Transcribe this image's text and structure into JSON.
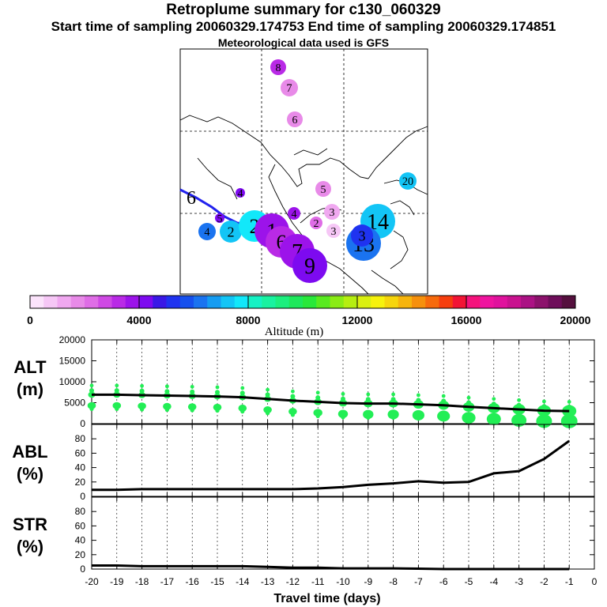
{
  "header": {
    "title": "Retroplume summary for c130_060329",
    "subtitle": "Start time of sampling 20060329.174753     End time of sampling 20060329.174851",
    "met_line": "Meteorological data used is GFS"
  },
  "colorbar": {
    "ticks": [
      "0",
      "4000",
      "8000",
      "12000",
      "16000",
      "20000"
    ],
    "label": "Altitude (m)",
    "colors": [
      "#fbe3fb",
      "#f6c7f6",
      "#f0a8f0",
      "#e88ae8",
      "#df6de6",
      "#cf49e4",
      "#b92ae6",
      "#9c13ea",
      "#7d0af0",
      "#3a18e6",
      "#1f33f0",
      "#1650ee",
      "#1a73f0",
      "#159cf2",
      "#13c5f6",
      "#12e8fa",
      "#15f2c4",
      "#19f2a0",
      "#1cef7e",
      "#1ee85b",
      "#29e83a",
      "#58ea20",
      "#8aec14",
      "#b5ee10",
      "#daf010",
      "#f6f20c",
      "#f6d50c",
      "#f6b40c",
      "#f6900c",
      "#f76a0c",
      "#f63e0e",
      "#f21435",
      "#f5127c",
      "#ef149f",
      "#e0129d",
      "#c9128f",
      "#ab1284",
      "#8c126c",
      "#6e0e5a",
      "#55103e"
    ]
  },
  "map": {
    "day_markers": [
      "1",
      "2",
      "3",
      "4",
      "5",
      "6",
      "7",
      "8",
      "9",
      "13",
      "14",
      "20",
      "4",
      "2",
      "4",
      "5",
      "3",
      "2",
      "3",
      "1",
      "6",
      "5"
    ]
  },
  "chart_data": [
    {
      "type": "scatter",
      "name": "ALT",
      "panel_label": [
        "ALT",
        "(m)"
      ],
      "x": [
        -20,
        -19,
        -18,
        -17,
        -16,
        -15,
        -14,
        -13,
        -12,
        -11,
        -10,
        -9,
        -8,
        -7,
        -6,
        -5,
        -4,
        -3,
        -2,
        -1
      ],
      "median_line": [
        6900,
        6900,
        6800,
        6700,
        6600,
        6500,
        6300,
        5900,
        5500,
        5200,
        4900,
        4800,
        4800,
        4600,
        4400,
        4000,
        3700,
        3400,
        3100,
        3000
      ],
      "yticks": [
        "20000",
        "15000",
        "10000",
        "5000",
        "0"
      ],
      "ylim": [
        0,
        20000
      ],
      "xlim": [
        -20,
        0
      ],
      "marker_color": "#22ee55"
    },
    {
      "type": "line",
      "name": "ABL",
      "panel_label": [
        "ABL",
        "(%)"
      ],
      "x": [
        -20,
        -19,
        -18,
        -17,
        -16,
        -15,
        -14,
        -13,
        -12,
        -11,
        -10,
        -9,
        -8,
        -7,
        -6,
        -5,
        -4,
        -3,
        -2,
        -1
      ],
      "values": [
        9,
        9,
        10,
        10,
        10,
        10,
        10,
        10,
        10,
        11,
        13,
        16,
        18,
        21,
        19,
        20,
        32,
        35,
        52,
        77
      ],
      "yticks": [
        "80",
        "60",
        "40",
        "20",
        "0"
      ],
      "ylim": [
        0,
        100
      ],
      "xlim": [
        -20,
        0
      ]
    },
    {
      "type": "line",
      "name": "STR",
      "panel_label": [
        "STR",
        "(%)"
      ],
      "x": [
        -20,
        -19,
        -18,
        -17,
        -16,
        -15,
        -14,
        -13,
        -12,
        -11,
        -10,
        -9,
        -8,
        -7,
        -6,
        -5,
        -4,
        -3,
        -2,
        -1
      ],
      "values": [
        5,
        5,
        4,
        4,
        4,
        4,
        4,
        3,
        2,
        2,
        1,
        1,
        1,
        0.5,
        0,
        0,
        0,
        0,
        0,
        0
      ],
      "yticks": [
        "80",
        "60",
        "40",
        "20",
        "0"
      ],
      "ylim": [
        0,
        100
      ],
      "xlim": [
        -20,
        0
      ],
      "xticks": [
        "-20",
        "-19",
        "-18",
        "-17",
        "-16",
        "-15",
        "-14",
        "-13",
        "-12",
        "-11",
        "-10",
        "-9",
        "-8",
        "-7",
        "-6",
        "-5",
        "-4",
        "-3",
        "-2",
        "-1",
        "0"
      ],
      "xlabel": "Travel time (days)"
    }
  ]
}
